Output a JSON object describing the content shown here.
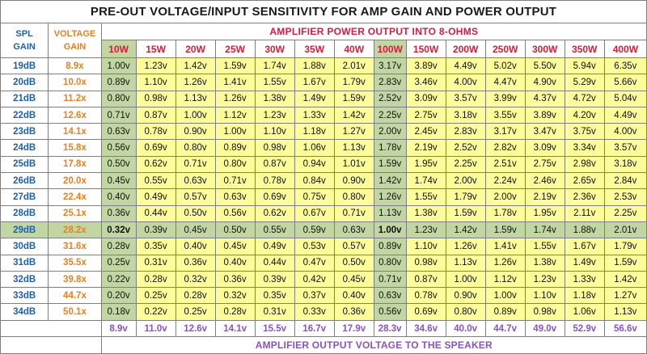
{
  "title": "PRE-OUT VOLTAGE/INPUT SENSITIVITY FOR AMP GAIN AND POWER OUTPUT",
  "spl_header": [
    "SPL",
    "GAIN"
  ],
  "voltage_gain_header": [
    "VOLTAGE",
    "GAIN"
  ],
  "amp_header": "AMPLIFIER POWER OUTPUT INTO 8-OHMS",
  "footer_label": "AMPLIFIER OUTPUT VOLTAGE TO THE SPEAKER",
  "highlight_colors": {
    "yellow": "#fcfc9a",
    "green": "#c2d6a4",
    "spl": "#1f5fb5",
    "voltage_gain": "#ee7f1d",
    "power": "#e0183b",
    "footer": "#8a52c8"
  },
  "watts": [
    "10W",
    "15W",
    "20W",
    "25W",
    "30W",
    "35W",
    "40W",
    "100W",
    "150W",
    "200W",
    "250W",
    "300W",
    "350W",
    "400W"
  ],
  "rows": [
    {
      "spl": "19dB",
      "gain": "8.9x",
      "values": [
        "1.00v",
        "1.23v",
        "1.42v",
        "1.59v",
        "1.74v",
        "1.88v",
        "2.01v",
        "3.17v",
        "3.89v",
        "4.49v",
        "5.02v",
        "5.50v",
        "5.94v",
        "6.35v"
      ]
    },
    {
      "spl": "20dB",
      "gain": "10.0x",
      "values": [
        "0.89v",
        "1.10v",
        "1.26v",
        "1.41v",
        "1.55v",
        "1.67v",
        "1.79v",
        "2.83v",
        "3.46v",
        "4.00v",
        "4.47v",
        "4.90v",
        "5.29v",
        "5.66v"
      ]
    },
    {
      "spl": "21dB",
      "gain": "11.2x",
      "values": [
        "0.80v",
        "0.98v",
        "1.13v",
        "1.26v",
        "1.38v",
        "1.49v",
        "1.59v",
        "2.52v",
        "3.09v",
        "3.57v",
        "3.99v",
        "4.37v",
        "4.72v",
        "5.04v"
      ]
    },
    {
      "spl": "22dB",
      "gain": "12.6x",
      "values": [
        "0.71v",
        "0.87v",
        "1.00v",
        "1.12v",
        "1.23v",
        "1.33v",
        "1.42v",
        "2.25v",
        "2.75v",
        "3.18v",
        "3.55v",
        "3.89v",
        "4.20v",
        "4.49v"
      ]
    },
    {
      "spl": "23dB",
      "gain": "14.1x",
      "values": [
        "0.63v",
        "0.78v",
        "0.90v",
        "1.00v",
        "1.10v",
        "1.18v",
        "1.27v",
        "2.00v",
        "2.45v",
        "2.83v",
        "3.17v",
        "3.47v",
        "3.75v",
        "4.00v"
      ]
    },
    {
      "spl": "24dB",
      "gain": "15.8x",
      "values": [
        "0.56v",
        "0.69v",
        "0.80v",
        "0.89v",
        "0.98v",
        "1.06v",
        "1.13v",
        "1.78v",
        "2.19v",
        "2.52v",
        "2.82v",
        "3.09v",
        "3.34v",
        "3.57v"
      ]
    },
    {
      "spl": "25dB",
      "gain": "17.8x",
      "values": [
        "0.50v",
        "0.62v",
        "0.71v",
        "0.80v",
        "0.87v",
        "0.94v",
        "1.01v",
        "1.59v",
        "1.95v",
        "2.25v",
        "2.51v",
        "2.75v",
        "2.98v",
        "3.18v"
      ]
    },
    {
      "spl": "26dB",
      "gain": "20.0x",
      "values": [
        "0.45v",
        "0.55v",
        "0.63v",
        "0.71v",
        "0.78v",
        "0.84v",
        "0.90v",
        "1.42v",
        "1.74v",
        "2.00v",
        "2.24v",
        "2.46v",
        "2.65v",
        "2.84v"
      ]
    },
    {
      "spl": "27dB",
      "gain": "22.4x",
      "values": [
        "0.40v",
        "0.49v",
        "0.57v",
        "0.63v",
        "0.69v",
        "0.75v",
        "0.80v",
        "1.26v",
        "1.55v",
        "1.79v",
        "2.00v",
        "2.19v",
        "2.36v",
        "2.53v"
      ]
    },
    {
      "spl": "28dB",
      "gain": "25.1x",
      "values": [
        "0.36v",
        "0.44v",
        "0.50v",
        "0.56v",
        "0.62v",
        "0.67v",
        "0.71v",
        "1.13v",
        "1.38v",
        "1.59v",
        "1.78v",
        "1.95v",
        "2.11v",
        "2.25v"
      ]
    },
    {
      "spl": "29dB",
      "gain": "28.2x",
      "values": [
        "0.32v",
        "0.39v",
        "0.45v",
        "0.50v",
        "0.55v",
        "0.59v",
        "0.63v",
        "1.00v",
        "1.23v",
        "1.42v",
        "1.59v",
        "1.74v",
        "1.88v",
        "2.01v"
      ]
    },
    {
      "spl": "30dB",
      "gain": "31.6x",
      "values": [
        "0.28v",
        "0.35v",
        "0.40v",
        "0.45v",
        "0.49v",
        "0.53v",
        "0.57v",
        "0.89v",
        "1.10v",
        "1.26v",
        "1.41v",
        "1.55v",
        "1.67v",
        "1.79v"
      ]
    },
    {
      "spl": "31dB",
      "gain": "35.5x",
      "values": [
        "0.25v",
        "0.31v",
        "0.36v",
        "0.40v",
        "0.44v",
        "0.47v",
        "0.50v",
        "0.80v",
        "0.98v",
        "1.13v",
        "1.26v",
        "1.38v",
        "1.49v",
        "1.59v"
      ]
    },
    {
      "spl": "32dB",
      "gain": "39.8x",
      "values": [
        "0.22v",
        "0.28v",
        "0.32v",
        "0.36v",
        "0.39v",
        "0.42v",
        "0.45v",
        "0.71v",
        "0.87v",
        "1.00v",
        "1.12v",
        "1.23v",
        "1.33v",
        "1.42v"
      ]
    },
    {
      "spl": "33dB",
      "gain": "44.7x",
      "values": [
        "0.20v",
        "0.25v",
        "0.28v",
        "0.32v",
        "0.35v",
        "0.37v",
        "0.40v",
        "0.63v",
        "0.78v",
        "0.90v",
        "1.00v",
        "1.10v",
        "1.18v",
        "1.27v"
      ]
    },
    {
      "spl": "34dB",
      "gain": "50.1x",
      "values": [
        "0.18v",
        "0.22v",
        "0.25v",
        "0.28v",
        "0.31v",
        "0.33v",
        "0.36v",
        "0.56v",
        "0.69v",
        "0.80v",
        "0.89v",
        "0.98v",
        "1.06v",
        "1.13v"
      ]
    }
  ],
  "footer_values": [
    "8.9v",
    "11.0v",
    "12.6v",
    "14.1v",
    "15.5v",
    "16.7v",
    "17.9v",
    "28.3v",
    "34.6v",
    "40.0v",
    "44.7v",
    "49.0v",
    "52.9v",
    "56.6v"
  ]
}
